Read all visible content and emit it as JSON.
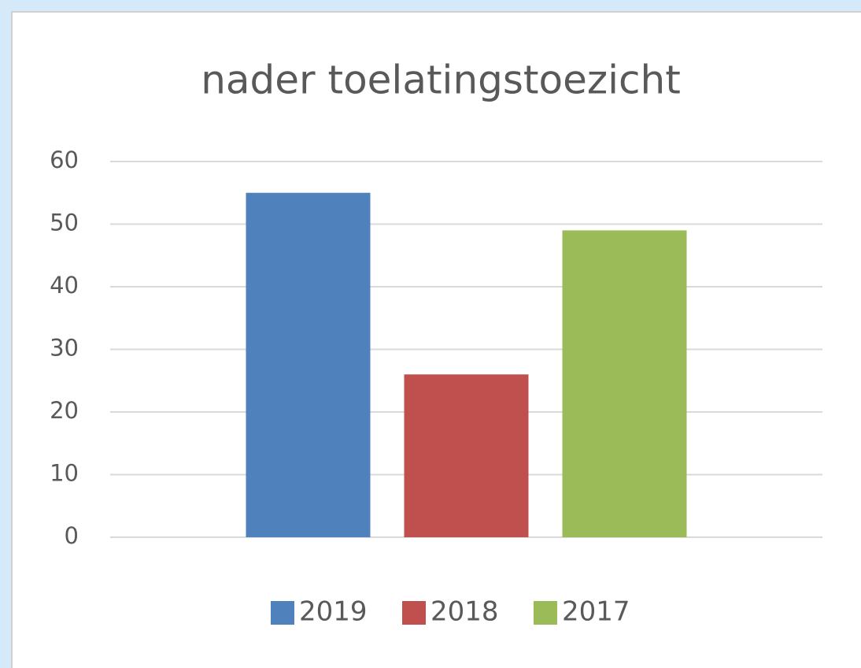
{
  "chart_data": {
    "type": "bar",
    "title": "nader toelatingstoezicht",
    "categories": [
      null
    ],
    "series": [
      {
        "name": "2019",
        "color": "#4f81bd",
        "values": [
          55
        ]
      },
      {
        "name": "2018",
        "color": "#c0504d",
        "values": [
          26
        ]
      },
      {
        "name": "2017",
        "color": "#9bbb59",
        "values": [
          49
        ]
      }
    ],
    "ylim": [
      0,
      60
    ],
    "yticks": [
      0,
      10,
      20,
      30,
      40,
      50,
      60
    ],
    "grid": true,
    "legend": "bottom"
  }
}
